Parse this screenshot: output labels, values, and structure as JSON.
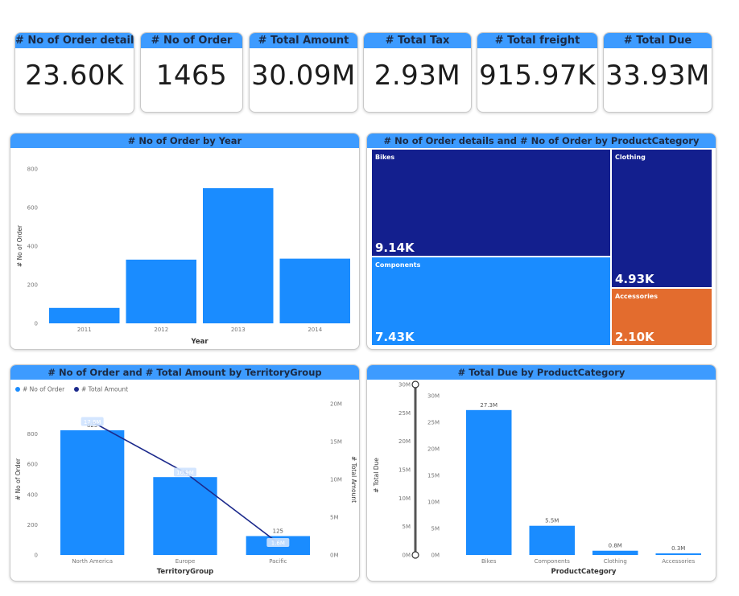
{
  "kpis": [
    {
      "label": "# No of Order details",
      "value": "23.60K"
    },
    {
      "label": "# No of Order",
      "value": "1465"
    },
    {
      "label": "# Total Amount",
      "value": "30.09M"
    },
    {
      "label": "# Total Tax",
      "value": "2.93M"
    },
    {
      "label": "# Total freight",
      "value": "915.97K"
    },
    {
      "label": "# Total Due",
      "value": "33.93M"
    }
  ],
  "colors": {
    "header": "#3d9bff",
    "bar": "#1a8cff",
    "dark_navy": "#131f8e",
    "line": "#1c2a8c",
    "accessories": "#e36c2e"
  },
  "chart_data": [
    {
      "id": "orders_by_year",
      "type": "bar",
      "title": "# No of Order by Year",
      "xlabel": "Year",
      "ylabel": "# No of Order",
      "categories": [
        "2011",
        "2012",
        "2013",
        "2014"
      ],
      "values": [
        80,
        330,
        700,
        335
      ],
      "ylim": [
        0,
        800
      ],
      "yticks": [
        "0",
        "200",
        "400",
        "600",
        "800"
      ],
      "grid": false
    },
    {
      "id": "treemap_category",
      "type": "treemap",
      "title": "# No of Order details and # No of Order by ProductCategory",
      "items": [
        {
          "name": "Bikes",
          "label": "9.14K",
          "color": "#131f8e"
        },
        {
          "name": "Components",
          "label": "7.43K",
          "color": "#1a8cff"
        },
        {
          "name": "Clothing",
          "label": "4.93K",
          "color": "#131f8e"
        },
        {
          "name": "Accessories",
          "label": "2.10K",
          "color": "#e36c2e"
        }
      ]
    },
    {
      "id": "orders_amount_territory",
      "type": "bar+line",
      "title": "# No of Order and # Total Amount by TerritoryGroup",
      "xlabel": "TerritoryGroup",
      "ylabel": "# No of Order",
      "y2label": "# Total Amount",
      "categories": [
        "North America",
        "Europe",
        "Pacific"
      ],
      "series": [
        {
          "name": "# No of Order",
          "type": "bar",
          "values": [
            825,
            515,
            125
          ],
          "labels": [
            "825",
            "515",
            "125"
          ]
        },
        {
          "name": "# Total Amount",
          "type": "line",
          "values": [
            17.6,
            10.9,
            1.6
          ],
          "labels": [
            "17.6M",
            "10.9M",
            "1.6M"
          ]
        }
      ],
      "ylim": [
        0,
        1000
      ],
      "y2lim": [
        0,
        20
      ],
      "yticks": [
        "0",
        "200",
        "400",
        "600",
        "800"
      ],
      "y2ticks": [
        "0M",
        "5M",
        "10M",
        "15M",
        "20M"
      ],
      "legend": "top-left"
    },
    {
      "id": "due_by_category",
      "type": "bar",
      "title": "# Total Due by ProductCategory",
      "xlabel": "ProductCategory",
      "ylabel": "# Total Due",
      "categories": [
        "Bikes",
        "Components",
        "Clothing",
        "Accessories"
      ],
      "values": [
        27.3,
        5.5,
        0.8,
        0.3
      ],
      "labels": [
        "27.3M",
        "5.5M",
        "0.8M",
        "0.3M"
      ],
      "ylim": [
        0,
        30
      ],
      "yticks": [
        "0M",
        "5M",
        "10M",
        "15M",
        "20M",
        "25M",
        "30M"
      ],
      "slider_ticks": [
        "0M",
        "5M",
        "10M",
        "15M",
        "20M",
        "25M",
        "30M"
      ]
    }
  ]
}
